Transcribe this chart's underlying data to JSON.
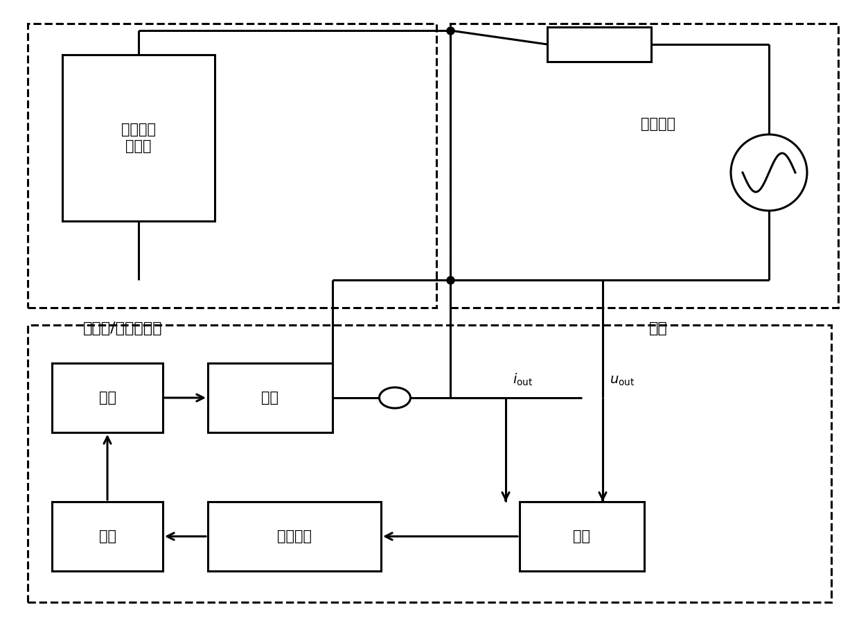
{
  "bg_color": "#ffffff",
  "line_color": "#000000",
  "dashed_color": "#000000",
  "font_color": "#000000",
  "figsize": [
    12.4,
    8.99
  ],
  "dpi": 100,
  "labels": {
    "new_energy": "新能源发\n电装置",
    "line_impedance": "线路阻抗",
    "power": "功率",
    "filter": "滤波",
    "control": "控制",
    "impedance_calc": "阻抗计算",
    "detect": "检测",
    "wind_solar": "风电场/太阳能电站",
    "grid": "电网",
    "i_out": "$i_{\\rm out}$",
    "u_out": "$u_{\\rm out}$"
  }
}
